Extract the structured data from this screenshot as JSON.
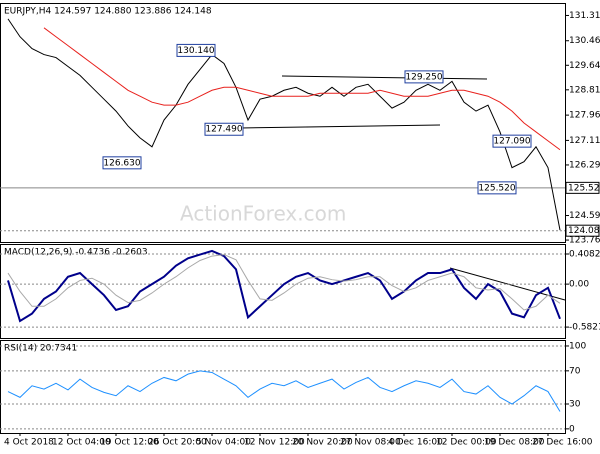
{
  "chart_data": [
    {
      "type": "line",
      "title": "EURJPY,H4  124.597 124.880 123.886 124.148",
      "watermark": "ActionForex.com",
      "ylim": [
        123.7,
        131.7
      ],
      "yticks": [
        131.315,
        130.465,
        {
          "value": 129.64,
          "label": "129.640"
        },
        128.815,
        127.965,
        127.115,
        {
          "value": 126.29,
          "label": "126.290"
        },
        124.59,
        123.765
      ],
      "levels": [
        {
          "value": 125.52,
          "label": "125.520"
        },
        {
          "value": 124.08,
          "label": "124.080"
        }
      ],
      "annotations": [
        {
          "value": 130.14,
          "label": "130.140"
        },
        {
          "value": 127.49,
          "label": "127.490"
        },
        {
          "value": 126.63,
          "label": "126.630"
        },
        {
          "value": 129.25,
          "label": "129.250"
        },
        {
          "value": 127.09,
          "label": "127.090"
        },
        {
          "value": 125.52,
          "label": "125.520"
        }
      ],
      "grid": false,
      "series": [
        {
          "name": "EURJPY",
          "color": "#000000",
          "values": [
            131.2,
            130.6,
            130.2,
            130.0,
            129.9,
            129.6,
            129.3,
            128.9,
            128.5,
            128.1,
            127.6,
            127.2,
            126.9,
            127.8,
            128.3,
            129.0,
            129.5,
            130.0,
            129.7,
            128.9,
            127.8,
            128.5,
            128.6,
            128.8,
            128.9,
            128.7,
            128.6,
            128.9,
            128.6,
            128.9,
            129.0,
            128.6,
            128.2,
            128.4,
            128.8,
            129.0,
            128.8,
            129.1,
            128.4,
            128.1,
            128.3,
            127.4,
            126.2,
            126.4,
            126.9,
            126.2,
            124.1
          ]
        },
        {
          "name": "MA",
          "color": "#e8211d",
          "values": [
            null,
            null,
            null,
            130.9,
            130.6,
            130.3,
            130.0,
            129.7,
            129.4,
            129.1,
            128.8,
            128.6,
            128.4,
            128.3,
            128.3,
            128.4,
            128.6,
            128.8,
            128.9,
            128.9,
            128.8,
            128.7,
            128.6,
            128.6,
            128.6,
            128.6,
            128.7,
            128.7,
            128.7,
            128.7,
            128.7,
            128.8,
            128.7,
            128.6,
            128.6,
            128.6,
            128.7,
            128.8,
            128.8,
            128.7,
            128.6,
            128.4,
            128.1,
            127.7,
            127.4,
            127.1,
            126.8
          ]
        }
      ]
    },
    {
      "type": "line",
      "title": "MACD(12,26,9) -0.4736 -0.2603",
      "ylim": [
        -0.73,
        0.53
      ],
      "yticks": [
        0.4082,
        {
          "value": 0,
          "label": "0.00"
        },
        -0.5821
      ],
      "grid": true,
      "series": [
        {
          "name": "MACD",
          "color": "#00008b",
          "values": [
            0.05,
            -0.5,
            -0.4,
            -0.2,
            -0.1,
            0.1,
            0.15,
            0.0,
            -0.15,
            -0.35,
            -0.3,
            -0.1,
            0.0,
            0.1,
            0.25,
            0.35,
            0.4,
            0.45,
            0.38,
            0.2,
            -0.45,
            -0.3,
            -0.15,
            0.0,
            0.1,
            0.15,
            0.05,
            0.0,
            0.05,
            0.1,
            0.15,
            0.05,
            -0.2,
            -0.1,
            0.05,
            0.15,
            0.15,
            0.2,
            -0.05,
            -0.2,
            0.0,
            -0.1,
            -0.4,
            -0.45,
            -0.15,
            -0.05,
            -0.47
          ]
        },
        {
          "name": "Signal",
          "color": "#a9a9a9",
          "values": [
            0.15,
            -0.1,
            -0.3,
            -0.3,
            -0.2,
            -0.05,
            0.05,
            0.08,
            0.0,
            -0.15,
            -0.25,
            -0.22,
            -0.12,
            0.0,
            0.1,
            0.22,
            0.32,
            0.38,
            0.4,
            0.33,
            0.05,
            -0.2,
            -0.22,
            -0.12,
            0.0,
            0.08,
            0.1,
            0.06,
            0.04,
            0.06,
            0.1,
            0.1,
            -0.02,
            -0.1,
            -0.05,
            0.05,
            0.1,
            0.15,
            0.1,
            -0.05,
            -0.08,
            -0.06,
            -0.2,
            -0.35,
            -0.3,
            -0.15,
            -0.26
          ]
        }
      ]
    },
    {
      "type": "line",
      "title": "RSI(14) 20.7341",
      "ylim": [
        -5,
        106
      ],
      "yticks": [
        100,
        70,
        30,
        0
      ],
      "grid": true,
      "categories": [
        null,
        "4 Oct 2018",
        null,
        null,
        null,
        "12 Oct 04:00",
        null,
        null,
        null,
        "19 Oct 12:00",
        null,
        null,
        null,
        "26 Oct 20:00",
        null,
        null,
        null,
        "5 Nov 04:00",
        null,
        null,
        null,
        "12 Nov 12:00",
        null,
        null,
        null,
        "20 Nov 20:00",
        null,
        null,
        null,
        "27 Nov 08:00",
        null,
        null,
        null,
        "4 Dec 16:00",
        null,
        null,
        null,
        "12 Dec 00:00",
        null,
        null,
        null,
        "19 Dec 08:00",
        null,
        null,
        null,
        "27 Dec 16:00",
        null
      ],
      "series": [
        {
          "name": "RSI",
          "color": "#1e90ff",
          "values": [
            45,
            38,
            52,
            48,
            55,
            47,
            60,
            50,
            44,
            40,
            52,
            45,
            55,
            62,
            58,
            66,
            70,
            68,
            60,
            52,
            38,
            48,
            55,
            52,
            58,
            50,
            55,
            60,
            48,
            56,
            62,
            50,
            45,
            52,
            58,
            55,
            50,
            60,
            45,
            42,
            52,
            38,
            30,
            40,
            52,
            45,
            21
          ]
        }
      ]
    }
  ]
}
